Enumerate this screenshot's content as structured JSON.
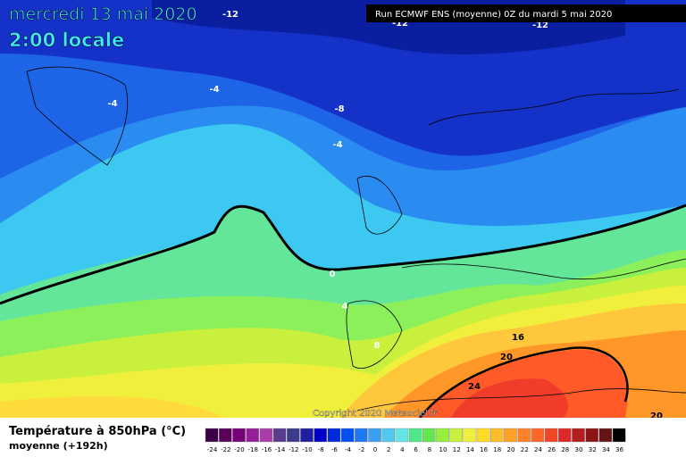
{
  "header": {
    "title": "mercredi 13 mai 2020",
    "time": "2:00 locale"
  },
  "run": "Run ECMWF ENS (moyenne) 0Z du mardi 5 mai 2020",
  "copyright": "Copyright 2020 Meteociel.fr",
  "contours": [
    -12,
    -12,
    -12,
    -4,
    -4,
    -8,
    -4,
    0,
    4,
    8,
    16,
    20,
    24,
    20
  ],
  "legend": {
    "title": "Température à 850hPa (°C)",
    "subtitle": "moyenne  (+192h)",
    "scale": [
      {
        "value": -24,
        "color": "#3c0046"
      },
      {
        "value": -22,
        "color": "#5a005a"
      },
      {
        "value": -20,
        "color": "#780078"
      },
      {
        "value": -18,
        "color": "#961e96"
      },
      {
        "value": -16,
        "color": "#aa3caa"
      },
      {
        "value": -14,
        "color": "#5a3c8c"
      },
      {
        "value": -12,
        "color": "#3c3c8c"
      },
      {
        "value": -10,
        "color": "#1e1ea0"
      },
      {
        "value": -8,
        "color": "#0000c8"
      },
      {
        "value": -6,
        "color": "#0028dc"
      },
      {
        "value": -4,
        "color": "#0050f0"
      },
      {
        "value": -2,
        "color": "#1e78f0"
      },
      {
        "value": 0,
        "color": "#3ca0f0"
      },
      {
        "value": 2,
        "color": "#50c8f0"
      },
      {
        "value": 4,
        "color": "#64e6e6"
      },
      {
        "value": 6,
        "color": "#50e68c"
      },
      {
        "value": 8,
        "color": "#64e650"
      },
      {
        "value": 10,
        "color": "#96f03c"
      },
      {
        "value": 12,
        "color": "#c8f03c"
      },
      {
        "value": 14,
        "color": "#f0f03c"
      },
      {
        "value": 16,
        "color": "#ffdc28"
      },
      {
        "value": 18,
        "color": "#ffbe28"
      },
      {
        "value": 20,
        "color": "#ffa028"
      },
      {
        "value": 22,
        "color": "#ff8228"
      },
      {
        "value": 24,
        "color": "#ff6428"
      },
      {
        "value": 26,
        "color": "#f04628"
      },
      {
        "value": 28,
        "color": "#dc2828"
      },
      {
        "value": 30,
        "color": "#b41e1e"
      },
      {
        "value": 32,
        "color": "#8c1414"
      },
      {
        "value": 34,
        "color": "#641414"
      },
      {
        "value": 36,
        "color": "#000000"
      }
    ]
  }
}
